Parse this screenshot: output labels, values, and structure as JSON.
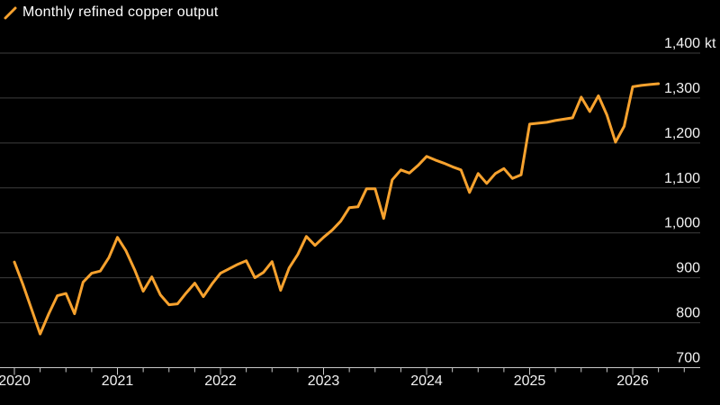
{
  "legend": {
    "label": "Monthly refined copper output"
  },
  "colors": {
    "background": "#000000",
    "line": "#F7A22E",
    "grid": "#3E3E3E",
    "axis": "#C8C8C8",
    "tick": "#C8C8C8",
    "label_text": "#F2F2F2",
    "title_text": "#FFFFFF"
  },
  "chart_data": {
    "type": "line",
    "title": "Monthly refined copper output",
    "unit": "kt",
    "x_monthly_start": "2020-01",
    "x_monthly_end": "2026-04",
    "x_tick_labels": [
      "2020",
      "2021",
      "2022",
      "2023",
      "2024",
      "2025",
      "2026"
    ],
    "y_ticks": [
      700,
      800,
      900,
      1000,
      1100,
      1200,
      1300,
      1400
    ],
    "ylim": [
      700,
      1400
    ],
    "grid": true,
    "legend_position": "top-left",
    "series": [
      {
        "name": "Monthly refined copper output",
        "values": [
          935,
          885,
          830,
          775,
          820,
          860,
          865,
          820,
          890,
          910,
          915,
          945,
          990,
          960,
          918,
          870,
          902,
          862,
          840,
          842,
          866,
          888,
          858,
          886,
          910,
          920,
          930,
          938,
          900,
          912,
          936,
          872,
          922,
          952,
          992,
          972,
          990,
          1006,
          1026,
          1056,
          1058,
          1098,
          1098,
          1032,
          1118,
          1140,
          1133,
          1150,
          1170,
          1162,
          1155,
          1147,
          1140,
          1090,
          1132,
          1110,
          1132,
          1143,
          1121,
          1129,
          1242,
          1244,
          1246,
          1250,
          1253,
          1256,
          1302,
          1270,
          1305,
          1262,
          1202,
          1237,
          1325,
          1328,
          1330,
          1332
        ]
      }
    ]
  }
}
